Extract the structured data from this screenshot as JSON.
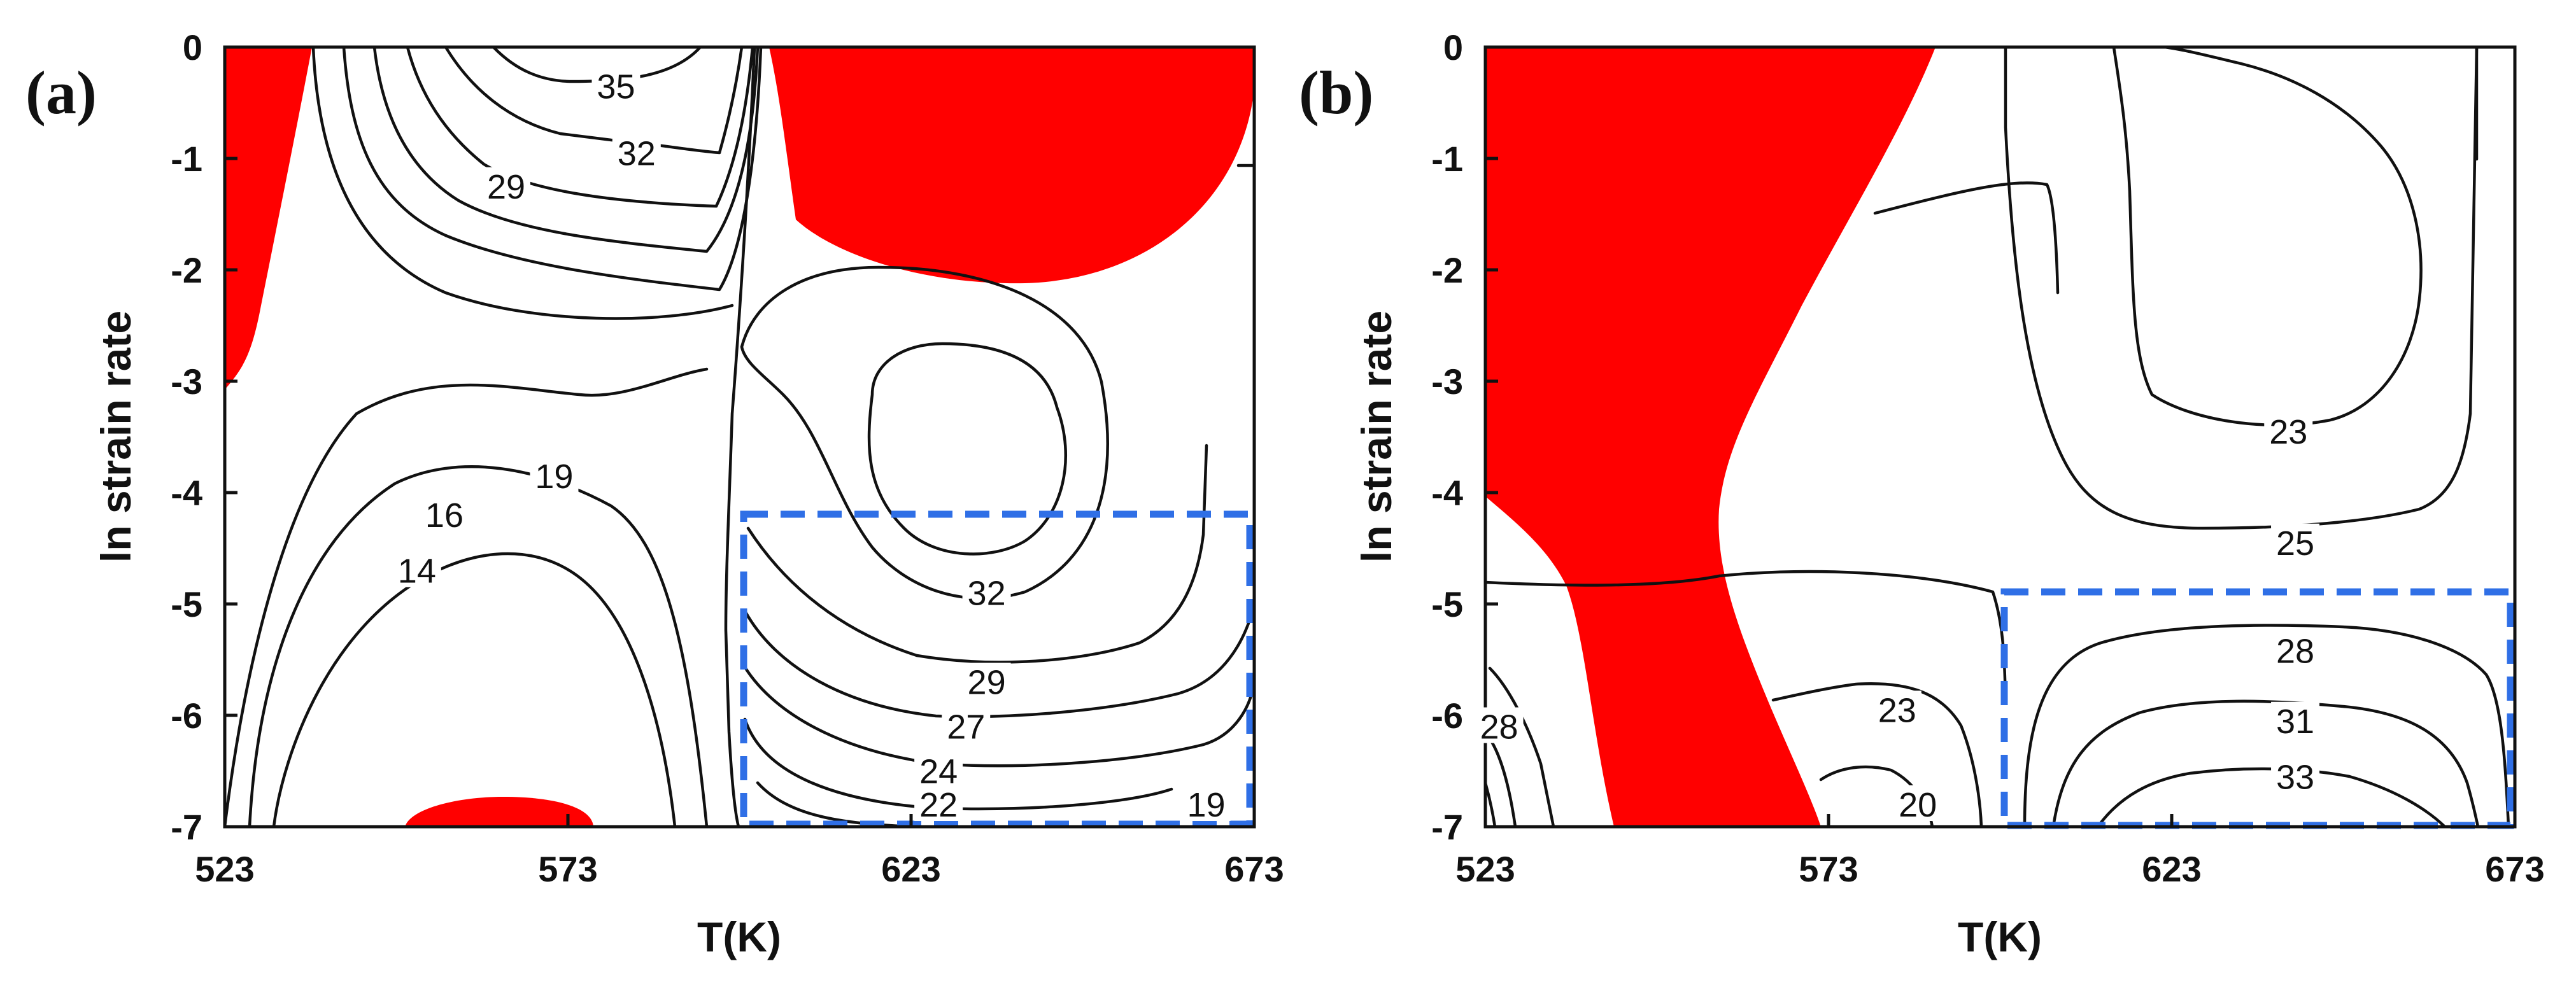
{
  "chart_data": [
    {
      "type": "contour",
      "panel_label": "(a)",
      "xlabel": "T(K)",
      "ylabel": "ln strain rate",
      "x_ticks": [
        523,
        573,
        623,
        673
      ],
      "y_ticks": [
        0,
        -1,
        -2,
        -3,
        -4,
        -5,
        -6,
        -7
      ],
      "xlim": [
        523,
        673
      ],
      "ylim": [
        -7,
        0
      ],
      "contour_labels": [
        {
          "value": "35",
          "x": 580,
          "y": -0.35
        },
        {
          "value": "32",
          "x": 583,
          "y": -0.95
        },
        {
          "value": "29",
          "x": 564,
          "y": -1.25
        },
        {
          "value": "19",
          "x": 571,
          "y": -3.85
        },
        {
          "value": "16",
          "x": 555,
          "y": -4.2
        },
        {
          "value": "14",
          "x": 551,
          "y": -4.7
        },
        {
          "value": "32",
          "x": 634,
          "y": -4.9
        },
        {
          "value": "29",
          "x": 634,
          "y": -5.7
        },
        {
          "value": "27",
          "x": 631,
          "y": -6.1
        },
        {
          "value": "24",
          "x": 627,
          "y": -6.5
        },
        {
          "value": "22",
          "x": 627,
          "y": -6.8
        },
        {
          "value": "19",
          "x": 666,
          "y": -6.8
        }
      ],
      "highlight_box": {
        "x": [
          599,
          672
        ],
        "y": [
          -7,
          -4.25
        ],
        "color": "#2f6fe6"
      },
      "instability_color": "#ff0000"
    },
    {
      "type": "contour",
      "panel_label": "(b)",
      "xlabel": "T(K)",
      "ylabel": "ln strain rate",
      "x_ticks": [
        523,
        573,
        623,
        673
      ],
      "y_ticks": [
        0,
        -1,
        -2,
        -3,
        -4,
        -5,
        -6,
        -7
      ],
      "xlim": [
        523,
        673
      ],
      "ylim": [
        -7,
        0
      ],
      "contour_labels": [
        {
          "value": "23",
          "x": 640,
          "y": -3.45
        },
        {
          "value": "25",
          "x": 641,
          "y": -4.45
        },
        {
          "value": "28",
          "x": 525,
          "y": -6.1
        },
        {
          "value": "23",
          "x": 583,
          "y": -5.95
        },
        {
          "value": "20",
          "x": 586,
          "y": -6.8
        },
        {
          "value": "28",
          "x": 641,
          "y": -5.42
        },
        {
          "value": "31",
          "x": 641,
          "y": -6.05
        },
        {
          "value": "33",
          "x": 641,
          "y": -6.55
        }
      ],
      "highlight_box": {
        "x": [
          599,
          672
        ],
        "y": [
          -7,
          -4.95
        ],
        "color": "#2f6fe6"
      },
      "instability_color": "#ff0000"
    }
  ]
}
